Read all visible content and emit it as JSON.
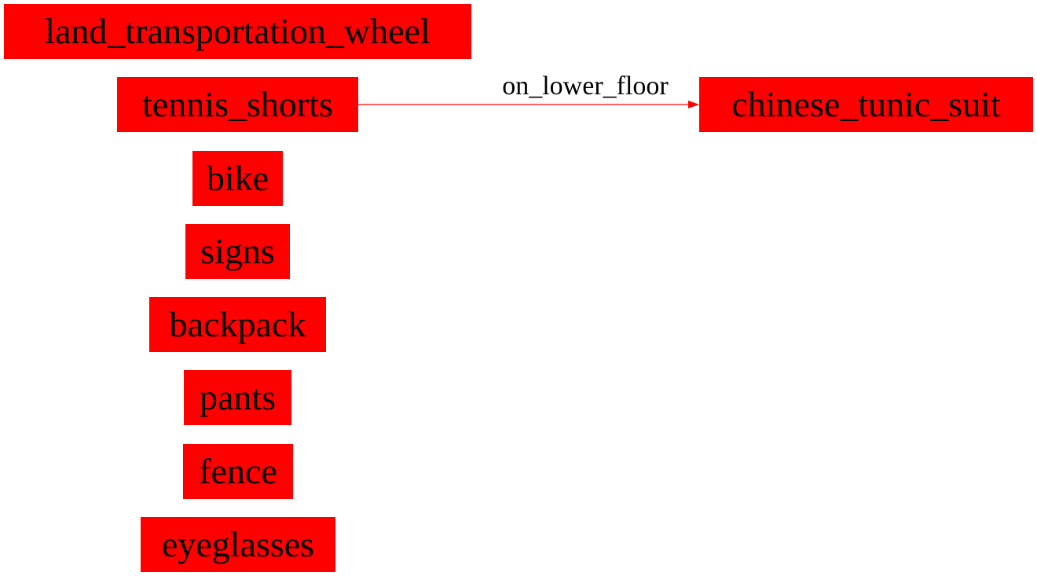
{
  "diagram": {
    "colors": {
      "node_fill": "#ff0000",
      "node_text": "#000000",
      "edge": "#ff0000",
      "edge_label": "#000000"
    },
    "nodes": [
      {
        "id": "land_transportation_wheel",
        "label": "land_transportation_wheel"
      },
      {
        "id": "tennis_shorts",
        "label": "tennis_shorts"
      },
      {
        "id": "chinese_tunic_suit",
        "label": "chinese_tunic_suit"
      },
      {
        "id": "bike",
        "label": "bike"
      },
      {
        "id": "signs",
        "label": "signs"
      },
      {
        "id": "backpack",
        "label": "backpack"
      },
      {
        "id": "pants",
        "label": "pants"
      },
      {
        "id": "fence",
        "label": "fence"
      },
      {
        "id": "eyeglasses",
        "label": "eyeglasses"
      }
    ],
    "edges": [
      {
        "from": "tennis_shorts",
        "to": "chinese_tunic_suit",
        "label": "on_lower_floor"
      }
    ]
  }
}
